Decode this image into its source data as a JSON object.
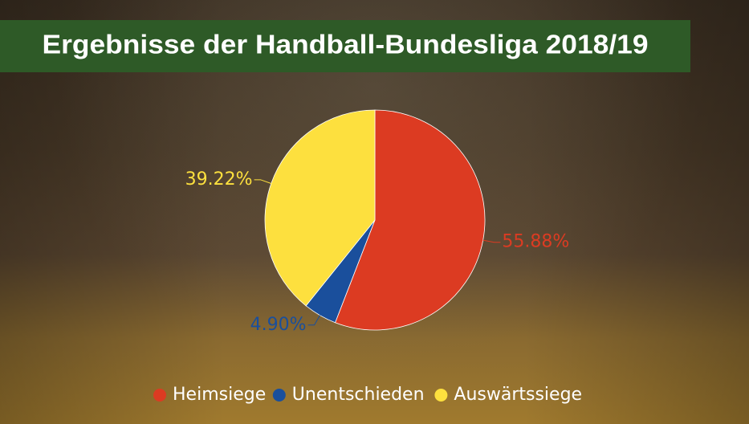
{
  "chart_data": {
    "type": "pie",
    "title": "Ergebnisse der Handball-Bundesliga 2018/19",
    "categories": [
      "Heimsiege",
      "Unentschieden",
      "Auswärtssiege"
    ],
    "values": [
      55.88,
      4.9,
      39.22
    ],
    "value_labels": [
      "55.88%",
      "4.90%",
      "39.22%"
    ],
    "colors": [
      "#dc3b22",
      "#1a4f9c",
      "#fde03e"
    ],
    "legend": "bottom"
  }
}
